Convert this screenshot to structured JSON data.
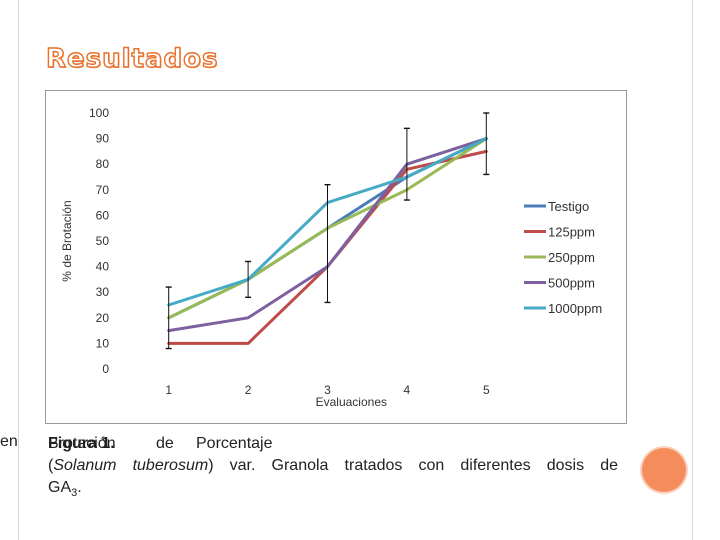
{
  "page": {
    "title": "Resultados",
    "left_fragment": "en",
    "caption": {
      "overlap_a": "Brotación",
      "overlap_b": "Figura 1.",
      "word_de": "de",
      "word_porcentaje": "Porcentaje",
      "line2_open": "(",
      "species": "Solanum tuberosum",
      "line2_rest": ") var. Granola tratados con diferentes dosis de",
      "line3_main": "GA",
      "line3_sub": "3",
      "line3_end": "."
    }
  },
  "colors": {
    "title_stroke": "#e8702a",
    "accent_dot": "#f48c5c",
    "Testigo": "#4a7ebb",
    "125ppm": "#be4b48",
    "250ppm": "#98b954",
    "500ppm": "#7d60a0",
    "1000ppm": "#46aac5"
  },
  "chart_data": {
    "type": "line",
    "title": "",
    "xlabel": "Evaluaciones",
    "ylabel": "% de Brotación",
    "x": [
      1,
      2,
      3,
      4,
      5
    ],
    "x_tick_labels": [
      "1",
      "2",
      "3",
      "4",
      "5"
    ],
    "ylim": [
      0,
      100
    ],
    "y_ticks": [
      0,
      10,
      20,
      30,
      40,
      50,
      60,
      70,
      80,
      90,
      100
    ],
    "grid": false,
    "legend_position": "right",
    "series": [
      {
        "name": "Testigo",
        "values": [
          20,
          35,
          55,
          75,
          90
        ]
      },
      {
        "name": "125ppm",
        "values": [
          10,
          10,
          40,
          78,
          85
        ]
      },
      {
        "name": "250ppm",
        "values": [
          20,
          35,
          55,
          70,
          90
        ]
      },
      {
        "name": "500ppm",
        "values": [
          15,
          20,
          40,
          80,
          90
        ]
      },
      {
        "name": "1000ppm",
        "values": [
          25,
          35,
          65,
          75,
          90
        ]
      }
    ],
    "error_bars": [
      {
        "x": 1,
        "low": 8,
        "high": 32
      },
      {
        "x": 2,
        "low": 28,
        "high": 42
      },
      {
        "x": 3,
        "low": 26,
        "high": 72
      },
      {
        "x": 4,
        "low": 66,
        "high": 94
      },
      {
        "x": 5,
        "low": 76,
        "high": 100
      }
    ]
  }
}
